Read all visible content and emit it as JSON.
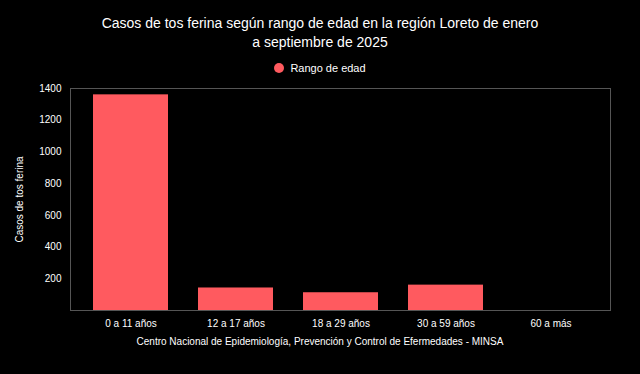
{
  "chart_data": {
    "type": "bar",
    "title": "Casos de tos ferina según rango de edad en la región Loreto de enero a septiembre de 2025",
    "caption": "Centro Nacional de Epidemiología, Prevención y Control de Efermedades - MINSA",
    "y_label": "Casos de tos ferina",
    "categories": [
      "0 a 11 años",
      "12 a 17 años",
      "18 a 29 años",
      "30 a 59 años",
      "60 a más"
    ],
    "series": [
      {
        "name": "Rango de edad",
        "color": "#ff5a5f",
        "values": [
          1360,
          142,
          112,
          160,
          0
        ]
      }
    ],
    "ylim": [
      0,
      1400
    ],
    "yticks": [
      200,
      400,
      600,
      800,
      1000,
      1200,
      1400
    ],
    "grid": false,
    "legend": "top"
  }
}
